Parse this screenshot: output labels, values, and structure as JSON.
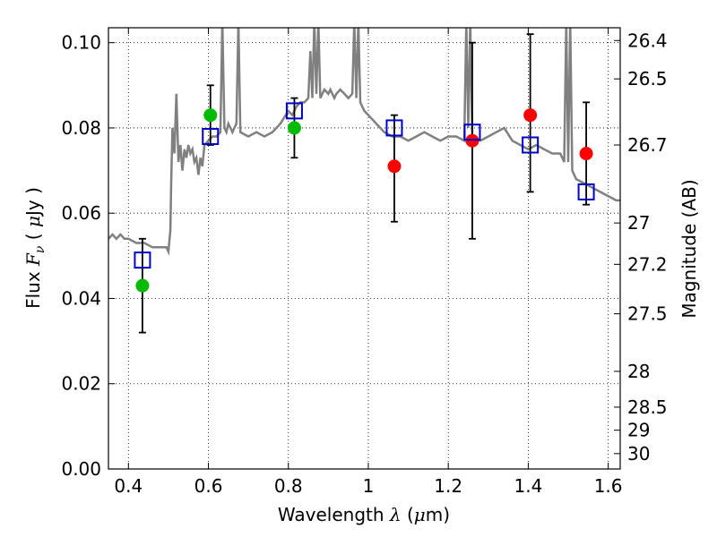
{
  "chart_data": {
    "type": "scatter",
    "xlabel": "Wavelength",
    "xlabel_symbol": "λ",
    "xlabel_unit_open": "(",
    "xlabel_unit_mu": "μ",
    "xlabel_unit_rest": "m)",
    "ylabel": "Flux",
    "ylabel_symbol": "F",
    "ylabel_symbol_sub": "ν",
    "ylabel_unit_open": "(",
    "ylabel_unit_mu": "μ",
    "ylabel_unit_rest": "Jy )",
    "y2label": "Magnitude (AB)",
    "xlim": [
      0.35,
      1.63
    ],
    "ylim": [
      0.0,
      0.1035
    ],
    "grid": true,
    "x_ticks": [
      0.4,
      0.6,
      0.8,
      1.0,
      1.2,
      1.4,
      1.6
    ],
    "x_tick_labels": [
      "0.4",
      "0.6",
      "0.8",
      "1",
      "1.2",
      "1.4",
      "1.6"
    ],
    "y_ticks": [
      0.0,
      0.02,
      0.04,
      0.06,
      0.08,
      0.1
    ],
    "y_tick_labels": [
      "0.00",
      "0.02",
      "0.04",
      "0.06",
      "0.08",
      "0.10"
    ],
    "y2_ticks": [
      {
        "label": "26.4",
        "flux": 0.1005
      },
      {
        "label": "26.5",
        "flux": 0.0915
      },
      {
        "label": "26.7",
        "flux": 0.076
      },
      {
        "label": "27",
        "flux": 0.0577
      },
      {
        "label": "27.2",
        "flux": 0.048
      },
      {
        "label": "27.5",
        "flux": 0.0364
      },
      {
        "label": "28",
        "flux": 0.0229
      },
      {
        "label": "28.5",
        "flux": 0.0145
      },
      {
        "label": "29",
        "flux": 0.0091
      },
      {
        "label": "30",
        "flux": 0.0036
      }
    ],
    "series": [
      {
        "kind": "line",
        "color": "#808080",
        "x": [
          0.35,
          0.36,
          0.37,
          0.38,
          0.39,
          0.4,
          0.42,
          0.44,
          0.46,
          0.48,
          0.495,
          0.5,
          0.505,
          0.507,
          0.51,
          0.515,
          0.52,
          0.525,
          0.53,
          0.535,
          0.54,
          0.545,
          0.55,
          0.555,
          0.56,
          0.565,
          0.57,
          0.575,
          0.58,
          0.585,
          0.59,
          0.6,
          0.61,
          0.62,
          0.63,
          0.635,
          0.64,
          0.645,
          0.65,
          0.655,
          0.66,
          0.665,
          0.67,
          0.675,
          0.68,
          0.7,
          0.72,
          0.74,
          0.76,
          0.78,
          0.8,
          0.81,
          0.815,
          0.82,
          0.83,
          0.84,
          0.85,
          0.855,
          0.86,
          0.865,
          0.87,
          0.875,
          0.88,
          0.89,
          0.9,
          0.905,
          0.91,
          0.915,
          0.92,
          0.93,
          0.94,
          0.95,
          0.96,
          0.965,
          0.97,
          0.975,
          0.98,
          0.99,
          1.0,
          1.02,
          1.04,
          1.06,
          1.08,
          1.1,
          1.12,
          1.14,
          1.16,
          1.18,
          1.2,
          1.22,
          1.24,
          1.245,
          1.25,
          1.255,
          1.26,
          1.28,
          1.3,
          1.32,
          1.34,
          1.36,
          1.38,
          1.4,
          1.42,
          1.44,
          1.46,
          1.48,
          1.49,
          1.495,
          1.5,
          1.505,
          1.51,
          1.52,
          1.54,
          1.56,
          1.58,
          1.6,
          1.62,
          1.63
        ],
        "y": [
          0.054,
          0.055,
          0.054,
          0.055,
          0.054,
          0.054,
          0.053,
          0.053,
          0.052,
          0.052,
          0.052,
          0.051,
          0.056,
          0.067,
          0.08,
          0.074,
          0.088,
          0.072,
          0.076,
          0.07,
          0.075,
          0.073,
          0.076,
          0.074,
          0.075,
          0.072,
          0.073,
          0.069,
          0.073,
          0.071,
          0.076,
          0.077,
          0.078,
          0.078,
          0.079,
          0.105,
          0.08,
          0.079,
          0.081,
          0.08,
          0.079,
          0.08,
          0.081,
          0.105,
          0.079,
          0.078,
          0.079,
          0.078,
          0.079,
          0.081,
          0.084,
          0.083,
          0.084,
          0.085,
          0.086,
          0.086,
          0.087,
          0.098,
          0.087,
          0.105,
          0.088,
          0.105,
          0.087,
          0.089,
          0.088,
          0.089,
          0.088,
          0.087,
          0.088,
          0.089,
          0.088,
          0.087,
          0.088,
          0.105,
          0.087,
          0.105,
          0.086,
          0.084,
          0.083,
          0.081,
          0.079,
          0.078,
          0.078,
          0.077,
          0.078,
          0.079,
          0.078,
          0.077,
          0.078,
          0.078,
          0.077,
          0.105,
          0.08,
          0.105,
          0.078,
          0.077,
          0.078,
          0.079,
          0.08,
          0.077,
          0.076,
          0.075,
          0.076,
          0.075,
          0.074,
          0.074,
          0.072,
          0.105,
          0.072,
          0.105,
          0.07,
          0.068,
          0.067,
          0.066,
          0.065,
          0.064,
          0.063,
          0.063
        ]
      },
      {
        "kind": "marker",
        "marker": "circle",
        "color": "#00bb00",
        "x": [
          0.435,
          0.605,
          0.815
        ],
        "y": [
          0.043,
          0.083,
          0.08
        ]
      },
      {
        "kind": "marker",
        "marker": "circle",
        "color": "#ff0000",
        "x": [
          1.065,
          1.26,
          1.405,
          1.545
        ],
        "y": [
          0.071,
          0.077,
          0.083,
          0.074
        ]
      },
      {
        "kind": "marker",
        "marker": "open-square",
        "color": "#0000cc",
        "x": [
          0.435,
          0.605,
          0.815,
          1.065,
          1.26,
          1.405,
          1.545
        ],
        "y": [
          0.049,
          0.078,
          0.084,
          0.08,
          0.079,
          0.076,
          0.065
        ],
        "yerr_low": [
          0.032,
          0.076,
          0.073,
          0.058,
          0.054,
          0.065,
          0.062
        ],
        "yerr_high": [
          0.054,
          0.09,
          0.087,
          0.083,
          0.1,
          0.102,
          0.086
        ]
      }
    ]
  }
}
